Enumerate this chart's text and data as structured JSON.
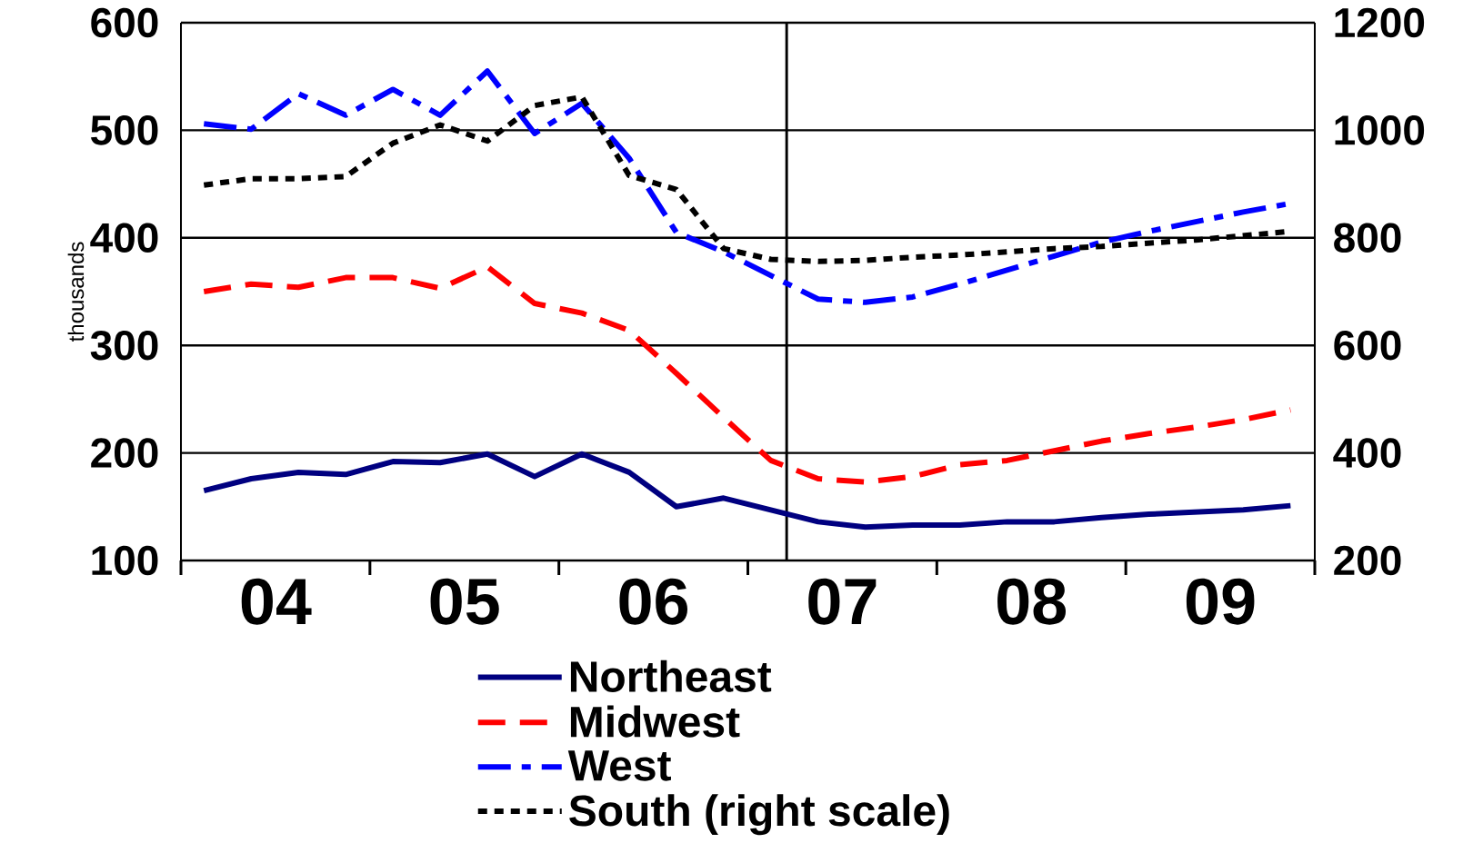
{
  "chart_data": {
    "type": "line",
    "ylabel": "thousands",
    "x": [
      "2004-02-15",
      "2004-05-15",
      "2004-08-15",
      "2004-11-15",
      "2005-02-15",
      "2005-05-15",
      "2005-08-15",
      "2005-11-15",
      "2006-02-15",
      "2006-05-15",
      "2006-08-15",
      "2006-11-15",
      "2007-02-15",
      "2007-05-15",
      "2007-08-15",
      "2007-11-15",
      "2008-02-15",
      "2008-05-15",
      "2008-08-15",
      "2008-11-15",
      "2009-02-15",
      "2009-05-15",
      "2009-08-15",
      "2009-11-15"
    ],
    "series": [
      {
        "name": "Northeast",
        "color": "#000080",
        "line_style": "solid",
        "values": [
          165,
          176,
          182,
          180,
          192,
          191,
          199,
          178,
          199,
          182,
          150,
          158,
          147,
          136,
          131,
          133,
          133,
          136,
          136,
          140,
          143,
          145,
          147,
          151
        ]
      },
      {
        "name": "Midwest",
        "color": "#ff0000",
        "line_style": "dashed",
        "values": [
          350,
          357,
          354,
          363,
          363,
          353,
          373,
          339,
          330,
          314,
          274,
          233,
          193,
          176,
          173,
          178,
          189,
          193,
          202,
          211,
          218,
          224,
          231,
          240
        ]
      },
      {
        "name": "West",
        "color": "#0000ff",
        "line_style": "dashdot",
        "values": [
          506,
          501,
          534,
          514,
          538,
          514,
          555,
          497,
          525,
          474,
          405,
          387,
          365,
          343,
          340,
          345,
          357,
          370,
          383,
          396,
          406,
          415,
          424,
          432
        ]
      },
      {
        "name": "South (right scale)",
        "color": "#000000",
        "line_style": "dotted",
        "axis": "y2",
        "values": [
          898,
          910,
          910,
          914,
          976,
          1010,
          980,
          1046,
          1062,
          916,
          890,
          780,
          760,
          756,
          758,
          764,
          768,
          774,
          780,
          784,
          790,
          796,
          804,
          812
        ]
      }
    ],
    "xlim": [
      "2004-01-01",
      "2010-01-01"
    ],
    "xticks": [
      {
        "value": "2004-01-01",
        "label": null
      },
      {
        "value": "2004-07-01",
        "label": "04"
      },
      {
        "value": "2005-01-01",
        "label": null
      },
      {
        "value": "2005-07-01",
        "label": "05"
      },
      {
        "value": "2006-01-01",
        "label": null
      },
      {
        "value": "2006-07-01",
        "label": "06"
      },
      {
        "value": "2007-01-01",
        "label": null
      },
      {
        "value": "2007-07-01",
        "label": "07"
      },
      {
        "value": "2008-01-01",
        "label": null
      },
      {
        "value": "2008-07-01",
        "label": "08"
      },
      {
        "value": "2009-01-01",
        "label": null
      },
      {
        "value": "2009-07-01",
        "label": "09"
      },
      {
        "value": "2010-01-01",
        "label": null
      }
    ],
    "ylim": [
      100,
      600
    ],
    "yticks": [
      100,
      200,
      300,
      400,
      500,
      600
    ],
    "y2lim": [
      200,
      1200
    ],
    "y2ticks": [
      200,
      400,
      600,
      800,
      1000,
      1200
    ],
    "ref_lines": [
      {
        "axis": "x",
        "value": "2007-03-15"
      }
    ],
    "grid": "y",
    "legend": "bottom"
  }
}
